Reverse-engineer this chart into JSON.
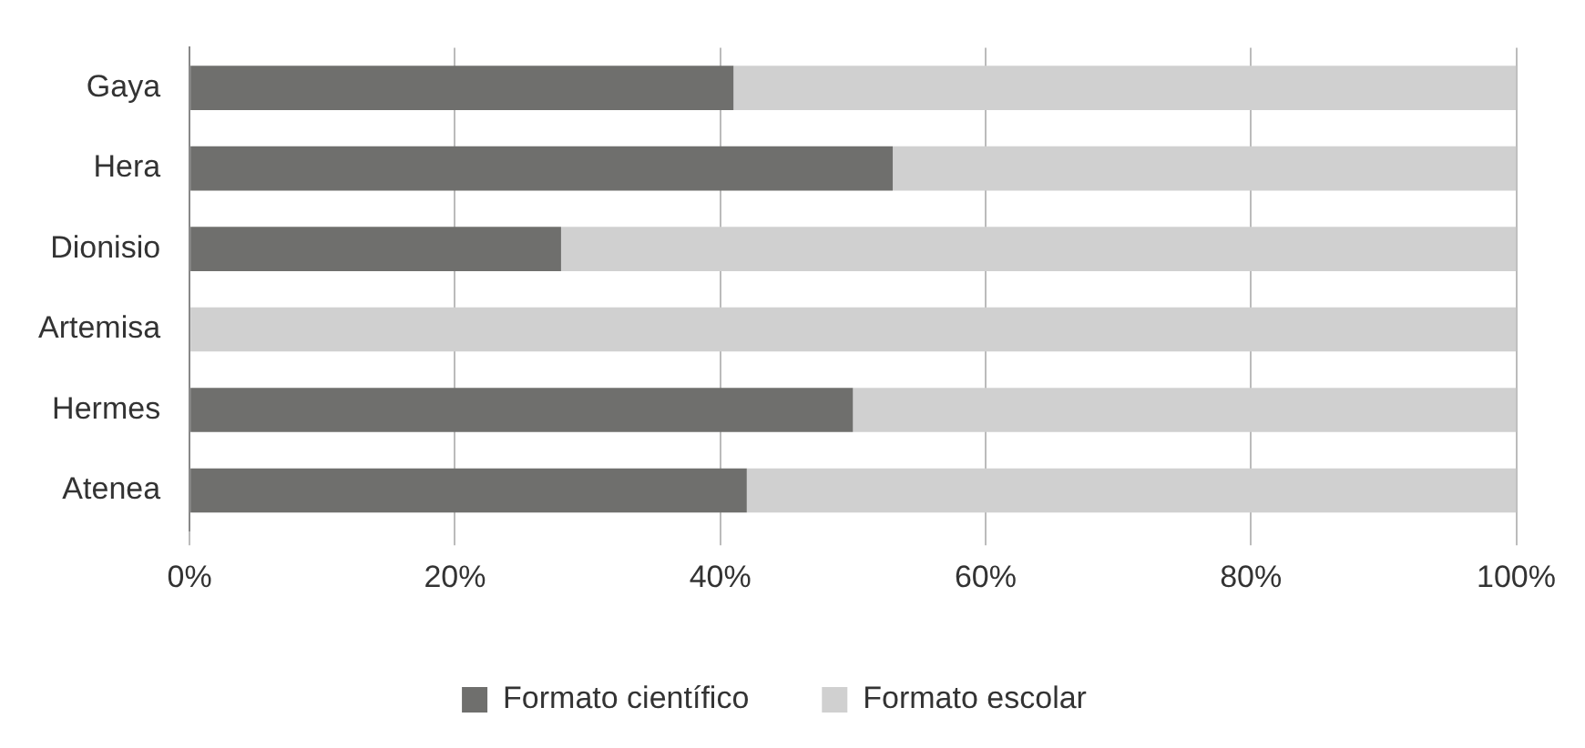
{
  "chart_data": {
    "type": "bar",
    "orientation": "horizontal",
    "stacked": true,
    "categories": [
      "Gaya",
      "Hera",
      "Dionisio",
      "Artemisa",
      "Hermes",
      "Atenea"
    ],
    "series": [
      {
        "name": "Formato científico",
        "color": "#6f6f6d",
        "values": [
          41,
          53,
          28,
          0,
          50,
          42
        ]
      },
      {
        "name": "Formato escolar",
        "color": "#d0d0d0",
        "values": [
          59,
          47,
          72,
          100,
          50,
          58
        ]
      }
    ],
    "xlim": [
      0,
      100
    ],
    "xticks": [
      {
        "value": 0,
        "label": "0%"
      },
      {
        "value": 20,
        "label": "20%"
      },
      {
        "value": 40,
        "label": "40%"
      },
      {
        "value": 60,
        "label": "60%"
      },
      {
        "value": 80,
        "label": "80%"
      },
      {
        "value": 100,
        "label": "100%"
      }
    ],
    "grid": "x",
    "legend": "bottom"
  }
}
